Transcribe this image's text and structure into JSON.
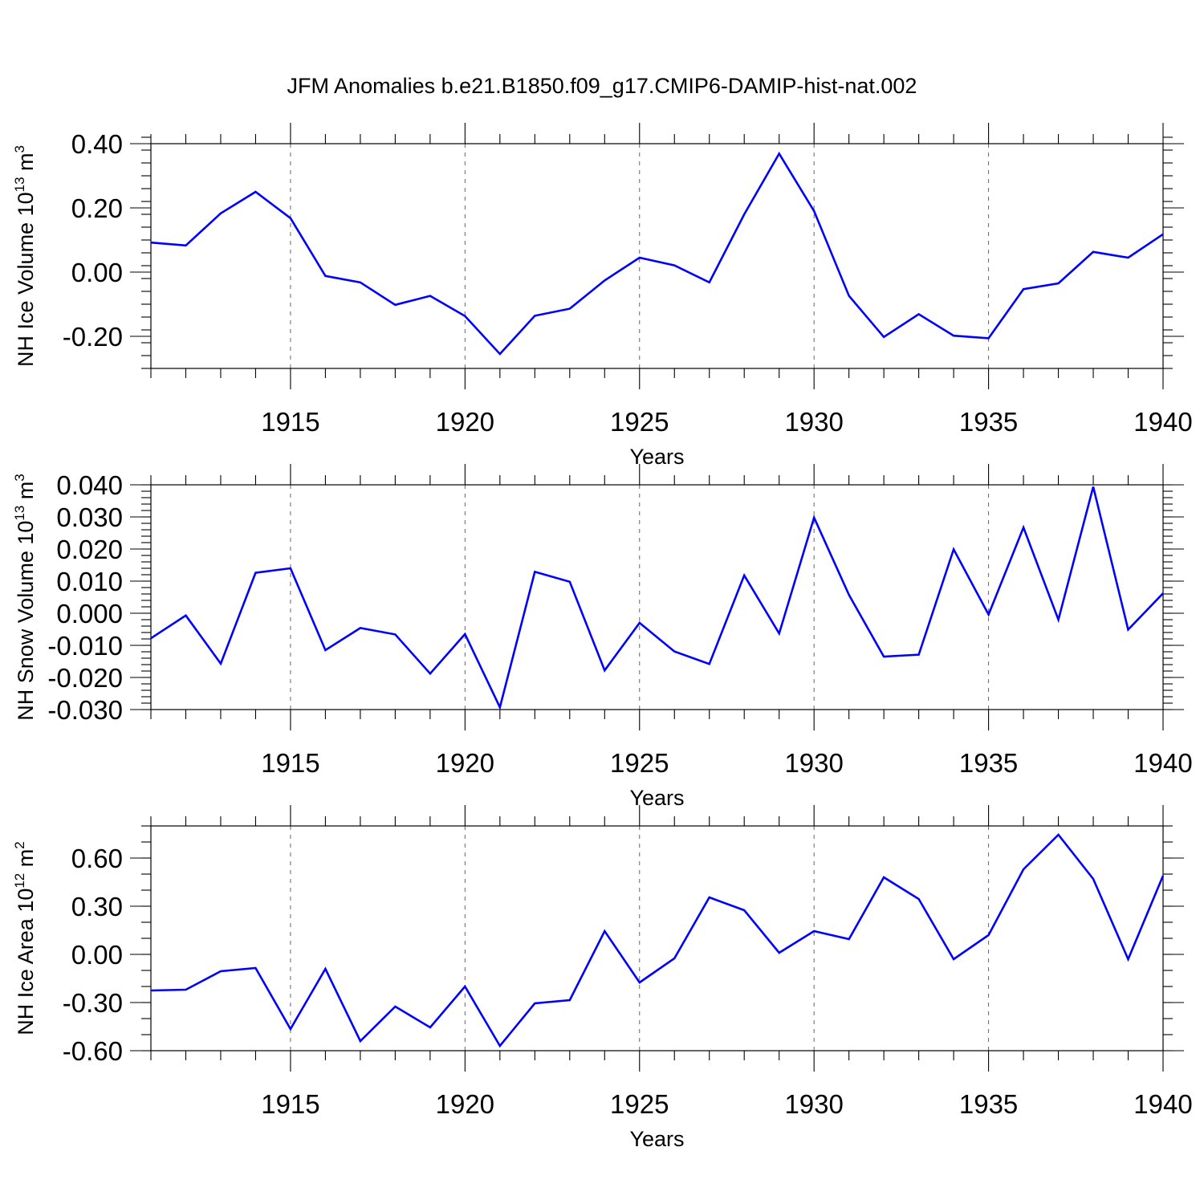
{
  "title": "JFM Anomalies b.e21.B1850.f09_g17.CMIP6-DAMIP-hist-nat.002",
  "colors": {
    "line": "#0000ff",
    "axis": "#000000",
    "grid": "#666666"
  },
  "chart_data": [
    {
      "type": "line",
      "ylabel": "NH Ice Volume 10",
      "ylabel_sup": "13",
      "ylabel_unit": " m",
      "ylabel_unit_sup": "3",
      "xlabel": "Years",
      "xlim": [
        1911,
        1940
      ],
      "ylim": [
        -0.3,
        0.4
      ],
      "yticks": [
        -0.2,
        0.0,
        0.2,
        0.4
      ],
      "yticklabels": [
        "-0.20",
        "0.00",
        "0.20",
        "0.40"
      ],
      "yminor": 0.04,
      "xticks": [
        1915,
        1920,
        1925,
        1930,
        1935,
        1940
      ],
      "xticklabels": [
        "1915",
        "1920",
        "1925",
        "1930",
        "1935",
        "1940"
      ],
      "grid_x": [
        1915,
        1920,
        1925,
        1930,
        1935
      ],
      "series": [
        {
          "name": "NH Ice Volume",
          "x": [
            1911,
            1912,
            1913,
            1914,
            1915,
            1916,
            1917,
            1918,
            1919,
            1920,
            1921,
            1922,
            1923,
            1924,
            1925,
            1926,
            1927,
            1928,
            1929,
            1930,
            1931,
            1932,
            1933,
            1934,
            1935,
            1936,
            1937,
            1938,
            1939,
            1940
          ],
          "values": [
            0.092,
            0.083,
            0.183,
            0.25,
            0.168,
            -0.012,
            -0.032,
            -0.102,
            -0.074,
            -0.137,
            -0.255,
            -0.136,
            -0.114,
            -0.026,
            0.045,
            0.021,
            -0.032,
            0.18,
            0.369,
            0.19,
            -0.074,
            -0.202,
            -0.131,
            -0.198,
            -0.206,
            -0.053,
            -0.035,
            0.063,
            0.045,
            0.118
          ]
        }
      ]
    },
    {
      "type": "line",
      "ylabel": "NH Snow Volume 10",
      "ylabel_sup": "13",
      "ylabel_unit": " m",
      "ylabel_unit_sup": "3",
      "xlabel": "Years",
      "xlim": [
        1911,
        1940
      ],
      "ylim": [
        -0.03,
        0.04
      ],
      "yticks": [
        -0.03,
        -0.02,
        -0.01,
        0.0,
        0.01,
        0.02,
        0.03,
        0.04
      ],
      "yticklabels": [
        "-0.030",
        "-0.020",
        "-0.010",
        "0.000",
        "0.010",
        "0.020",
        "0.030",
        "0.040"
      ],
      "yminor": 0.002,
      "xticks": [
        1915,
        1920,
        1925,
        1930,
        1935,
        1940
      ],
      "xticklabels": [
        "1915",
        "1920",
        "1925",
        "1930",
        "1935",
        "1940"
      ],
      "grid_x": [
        1915,
        1920,
        1925,
        1930,
        1935
      ],
      "series": [
        {
          "name": "NH Snow Volume",
          "x": [
            1911,
            1912,
            1913,
            1914,
            1915,
            1916,
            1917,
            1918,
            1919,
            1920,
            1921,
            1922,
            1923,
            1924,
            1925,
            1926,
            1927,
            1928,
            1929,
            1930,
            1931,
            1932,
            1933,
            1934,
            1935,
            1936,
            1937,
            1938,
            1939,
            1940
          ],
          "values": [
            -0.0078,
            -0.0007,
            -0.0157,
            0.0126,
            0.014,
            -0.0115,
            -0.0046,
            -0.0066,
            -0.0188,
            -0.0065,
            -0.0293,
            0.0129,
            0.0098,
            -0.0178,
            -0.003,
            -0.0119,
            -0.0158,
            0.0118,
            -0.0063,
            0.0298,
            0.0057,
            -0.0135,
            -0.0129,
            0.0199,
            -0.0004,
            0.0267,
            -0.002,
            0.0394,
            -0.0051,
            0.0062
          ]
        }
      ]
    },
    {
      "type": "line",
      "ylabel": "NH Ice Area 10",
      "ylabel_sup": "12",
      "ylabel_unit": " m",
      "ylabel_unit_sup": "2",
      "xlabel": "Years",
      "xlim": [
        1911,
        1940
      ],
      "ylim": [
        -0.6,
        0.8
      ],
      "yticks": [
        -0.6,
        -0.3,
        0.0,
        0.3,
        0.6
      ],
      "yticklabels": [
        "-0.60",
        "-0.30",
        "0.00",
        "0.30",
        "0.60"
      ],
      "yminor": 0.1,
      "xticks": [
        1915,
        1920,
        1925,
        1930,
        1935,
        1940
      ],
      "xticklabels": [
        "1915",
        "1920",
        "1925",
        "1930",
        "1935",
        "1940"
      ],
      "grid_x": [
        1915,
        1920,
        1925,
        1930,
        1935
      ],
      "series": [
        {
          "name": "NH Ice Area",
          "x": [
            1911,
            1912,
            1913,
            1914,
            1915,
            1916,
            1917,
            1918,
            1919,
            1920,
            1921,
            1922,
            1923,
            1924,
            1925,
            1926,
            1927,
            1928,
            1929,
            1930,
            1931,
            1932,
            1933,
            1934,
            1935,
            1936,
            1937,
            1938,
            1939,
            1940
          ],
          "values": [
            -0.225,
            -0.22,
            -0.105,
            -0.085,
            -0.465,
            -0.09,
            -0.54,
            -0.325,
            -0.455,
            -0.2,
            -0.57,
            -0.305,
            -0.285,
            0.145,
            -0.175,
            -0.025,
            0.355,
            0.275,
            0.01,
            0.145,
            0.095,
            0.48,
            0.345,
            -0.03,
            0.12,
            0.53,
            0.745,
            0.47,
            -0.03,
            0.49
          ]
        }
      ]
    }
  ]
}
